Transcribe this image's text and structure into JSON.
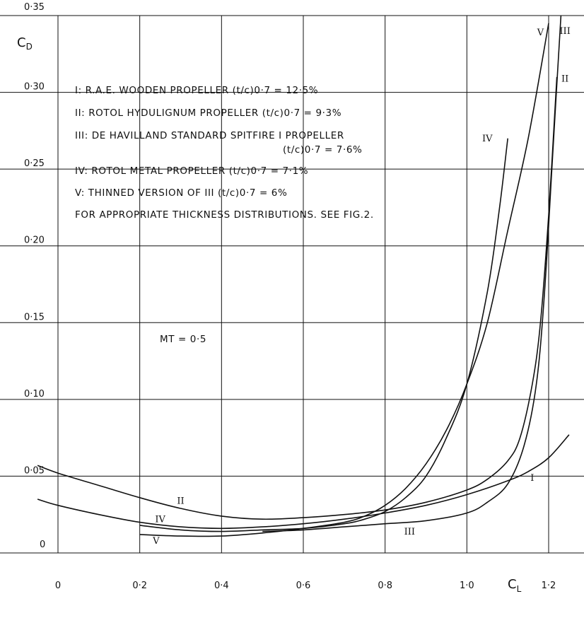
{
  "chart_data": {
    "type": "line",
    "xlabel": "C",
    "xlabel_sub": "L",
    "ylabel": "C",
    "ylabel_sub": "D",
    "xlim": [
      -0.05,
      1.25
    ],
    "ylim": [
      0,
      0.35
    ],
    "grid": true,
    "x_ticks": [
      {
        "value": 0,
        "label": "0"
      },
      {
        "value": 0.2,
        "label": "0·2"
      },
      {
        "value": 0.4,
        "label": "0·4"
      },
      {
        "value": 0.6,
        "label": "0·6"
      },
      {
        "value": 0.8,
        "label": "0·8"
      },
      {
        "value": 1.0,
        "label": "1·0"
      },
      {
        "value": 1.2,
        "label": "1·2"
      }
    ],
    "y_ticks": [
      {
        "value": 0,
        "label": "0"
      },
      {
        "value": 0.05,
        "label": "0·05"
      },
      {
        "value": 0.1,
        "label": "0·10"
      },
      {
        "value": 0.15,
        "label": "0·15"
      },
      {
        "value": 0.2,
        "label": "0·20"
      },
      {
        "value": 0.25,
        "label": "0·25"
      },
      {
        "value": 0.3,
        "label": "0·30"
      },
      {
        "value": 0.35,
        "label": "0·35"
      }
    ],
    "legend": [
      "I: R.A.E. WOODEN PROPELLER (t/c)0·7 = 12·5%",
      "II: ROTOL HYDULIGNUM PROPELLER (t/c)0·7 = 9·3%",
      "III: DE HAVILLAND STANDARD SPITFIRE I PROPELLER",
      "(t/c)0·7 = 7·6%",
      "IV: ROTOL METAL PROPELLER (t/c)0·7 = 7·1%",
      "V: THINNED VERSION OF III (t/c)0·7 = 6%",
      "FOR APPROPRIATE THICKNESS DISTRIBUTIONS. SEE FIG.2."
    ],
    "annotation": "MT = 0·5",
    "series": [
      {
        "name": "I",
        "x": [
          -0.05,
          0.0,
          0.1,
          0.2,
          0.3,
          0.4,
          0.5,
          0.6,
          0.7,
          0.8,
          0.9,
          1.0,
          1.1,
          1.15,
          1.2,
          1.25
        ],
        "y": [
          0.035,
          0.031,
          0.025,
          0.02,
          0.017,
          0.016,
          0.017,
          0.019,
          0.022,
          0.026,
          0.031,
          0.038,
          0.047,
          0.053,
          0.062,
          0.077
        ]
      },
      {
        "name": "II",
        "x": [
          -0.05,
          0.0,
          0.1,
          0.2,
          0.3,
          0.4,
          0.5,
          0.6,
          0.7,
          0.8,
          0.9,
          1.0,
          1.05,
          1.1,
          1.13,
          1.16,
          1.18,
          1.2,
          1.22
        ],
        "y": [
          0.057,
          0.052,
          0.044,
          0.036,
          0.029,
          0.024,
          0.022,
          0.023,
          0.025,
          0.028,
          0.033,
          0.041,
          0.048,
          0.06,
          0.075,
          0.11,
          0.15,
          0.22,
          0.31
        ]
      },
      {
        "name": "III",
        "x": [
          0.5,
          0.6,
          0.7,
          0.8,
          0.9,
          1.0,
          1.05,
          1.1,
          1.14,
          1.17,
          1.19,
          1.21,
          1.23
        ],
        "y": [
          0.014,
          0.015,
          0.017,
          0.019,
          0.021,
          0.026,
          0.033,
          0.045,
          0.07,
          0.11,
          0.17,
          0.26,
          0.35
        ]
      },
      {
        "name": "IV",
        "x": [
          0.2,
          0.3,
          0.4,
          0.5,
          0.6,
          0.7,
          0.75,
          0.8,
          0.85,
          0.9,
          0.95,
          1.0,
          1.05,
          1.08,
          1.1
        ],
        "y": [
          0.018,
          0.015,
          0.014,
          0.015,
          0.016,
          0.019,
          0.022,
          0.027,
          0.036,
          0.05,
          0.075,
          0.11,
          0.17,
          0.225,
          0.27
        ]
      },
      {
        "name": "V",
        "x": [
          0.2,
          0.3,
          0.4,
          0.5,
          0.6,
          0.7,
          0.75,
          0.8,
          0.85,
          0.9,
          0.95,
          1.0,
          1.05,
          1.1,
          1.15,
          1.2
        ],
        "y": [
          0.012,
          0.011,
          0.011,
          0.013,
          0.016,
          0.02,
          0.024,
          0.031,
          0.042,
          0.058,
          0.08,
          0.11,
          0.15,
          0.21,
          0.27,
          0.345
        ]
      }
    ],
    "curve_labels": [
      {
        "series": "I",
        "text": "I",
        "x": 1.16,
        "y": 0.047
      },
      {
        "series": "II",
        "text": "II",
        "x": 0.3,
        "y": 0.032
      },
      {
        "series": "II",
        "text": "II",
        "x": 1.24,
        "y": 0.307
      },
      {
        "series": "III",
        "text": "III",
        "x": 0.86,
        "y": 0.012
      },
      {
        "series": "III",
        "text": "III",
        "x": 1.24,
        "y": 0.338
      },
      {
        "series": "IV",
        "text": "IV",
        "x": 0.25,
        "y": 0.02
      },
      {
        "series": "IV",
        "text": "IV",
        "x": 1.05,
        "y": 0.268
      },
      {
        "series": "V",
        "text": "V",
        "x": 0.24,
        "y": 0.006
      },
      {
        "series": "V",
        "text": "V",
        "x": 1.18,
        "y": 0.337
      }
    ]
  }
}
